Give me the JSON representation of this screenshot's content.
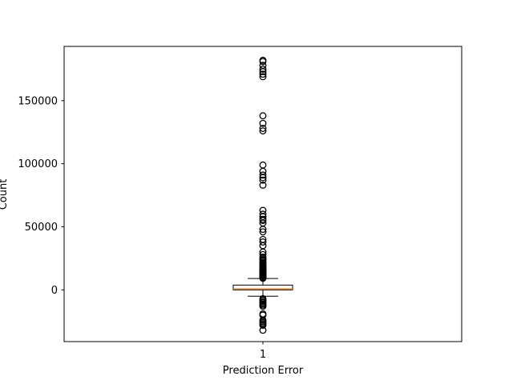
{
  "chart_data": {
    "type": "box",
    "xlabel": "Prediction Error",
    "ylabel": "Count",
    "categories": [
      "1"
    ],
    "ylim": [
      -41000,
      193000
    ],
    "yticks": [
      0,
      50000,
      100000,
      150000
    ],
    "ytick_labels": [
      "0",
      "50000",
      "100000",
      "150000"
    ],
    "grid": false,
    "colors": {
      "box": "#000000",
      "median": "#ff7f0e"
    },
    "box": {
      "whisker_low": -5000,
      "q1": 0,
      "median": 800,
      "q3": 3800,
      "whisker_high": 9000
    },
    "outliers": [
      182000,
      181000,
      178000,
      175000,
      173000,
      171000,
      169000,
      138000,
      132000,
      128000,
      126000,
      99000,
      94000,
      91000,
      89000,
      87000,
      83000,
      63000,
      60000,
      58000,
      56000,
      55000,
      53000,
      48000,
      46000,
      40000,
      38000,
      35000,
      30000,
      28000,
      26000,
      25000,
      24000,
      23000,
      22000,
      21000,
      20000,
      19000,
      18000,
      17500,
      17000,
      16500,
      16000,
      15500,
      15000,
      14500,
      14000,
      13500,
      13000,
      12500,
      12000,
      11500,
      11000,
      10500,
      10000,
      9500,
      9200,
      -7000,
      -8000,
      -9000,
      -10000,
      -11000,
      -12000,
      -13000,
      -19000,
      -20000,
      -24000,
      -25000,
      -26000,
      -27000,
      -28000,
      -32000
    ]
  }
}
